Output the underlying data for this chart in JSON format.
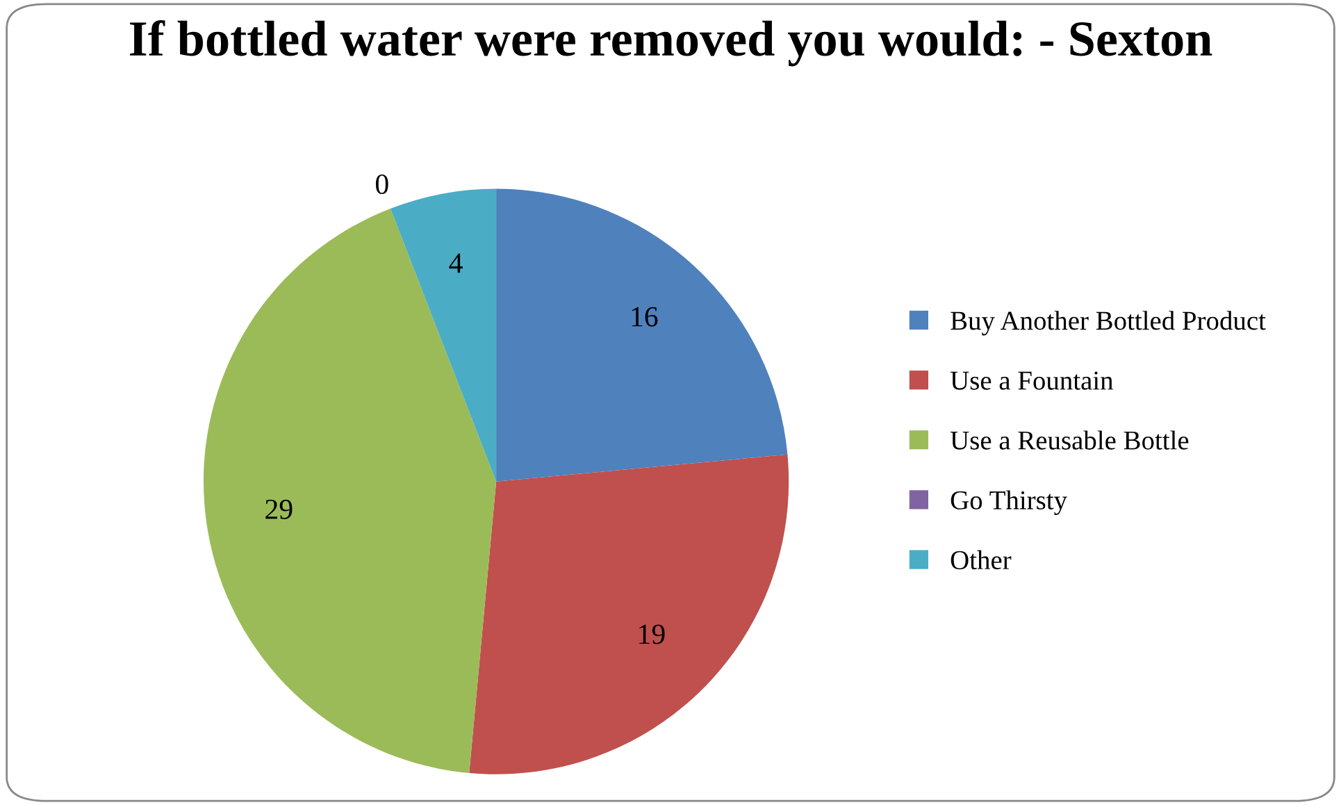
{
  "chart_data": {
    "type": "pie",
    "title": "If bottled water were removed you would: - Sexton",
    "categories": [
      "Buy Another Bottled Product",
      "Use a Fountain",
      "Use a Reusable Bottle",
      "Go Thirsty",
      "Other"
    ],
    "values": [
      16,
      19,
      29,
      0,
      4
    ],
    "colors": [
      "#4f81bd",
      "#c0504d",
      "#9bbb59",
      "#8064a2",
      "#4bacc6"
    ],
    "value_labels": [
      "16",
      "19",
      "29",
      "0",
      "4"
    ],
    "legend": "right"
  }
}
